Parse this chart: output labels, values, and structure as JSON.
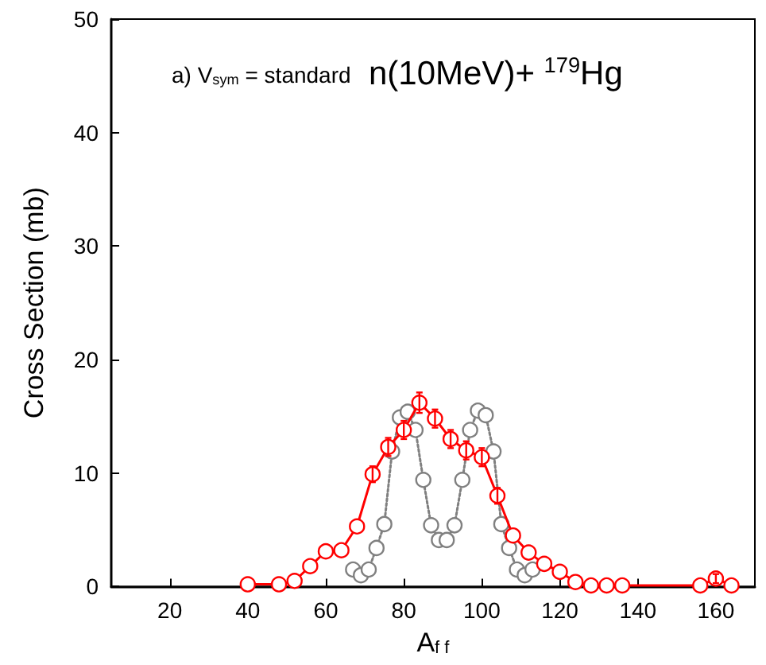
{
  "chart_data": {
    "type": "line",
    "xlabel": "A$_{f f}$",
    "ylabel": "Cross Section (mb)",
    "annotations": [
      "a) V$_{sym}$ = standard",
      "n(10MeV)+ $^{179}$Hg"
    ],
    "xlim": [
      5,
      170
    ],
    "xticks": [
      20,
      40,
      60,
      80,
      100,
      120,
      140,
      160
    ],
    "ylim": [
      0,
      50
    ],
    "yticks": [
      0,
      10,
      20,
      30,
      40,
      50
    ],
    "marker": "circle",
    "series": [
      {
        "color": "#808080",
        "line_style": "dotted",
        "x": [
          67,
          69,
          71,
          73,
          75,
          77,
          79,
          81,
          83,
          85,
          87,
          89,
          91,
          93,
          95,
          97,
          99,
          101,
          103,
          105,
          107,
          109,
          111,
          113
        ],
        "values": [
          1.5,
          1.0,
          1.5,
          3.4,
          5.5,
          11.9,
          14.9,
          15.4,
          13.8,
          9.4,
          5.4,
          4.1,
          4.1,
          5.4,
          9.4,
          13.8,
          15.5,
          15.1,
          11.9,
          5.5,
          3.4,
          1.5,
          1.0,
          1.5
        ]
      },
      {
        "color": "#ff0000",
        "line_style": "solid",
        "x": [
          40,
          48,
          52,
          56,
          60,
          64,
          68,
          72,
          76,
          80,
          84,
          88,
          92,
          96,
          100,
          104,
          108,
          112,
          116,
          120,
          124,
          128,
          132,
          136,
          156,
          160,
          164
        ],
        "values": [
          0.2,
          0.2,
          0.5,
          1.8,
          3.1,
          3.2,
          5.3,
          9.9,
          12.3,
          13.8,
          16.2,
          14.8,
          13.0,
          12.0,
          11.4,
          8.0,
          4.5,
          3.0,
          2.0,
          1.3,
          0.4,
          0.1,
          0.1,
          0.1,
          0.1,
          0.7,
          0.1
        ],
        "errors": [
          null,
          null,
          null,
          null,
          null,
          null,
          null,
          0.7,
          0.8,
          0.8,
          0.9,
          0.8,
          0.8,
          0.8,
          0.8,
          0.7,
          null,
          null,
          null,
          null,
          null,
          null,
          null,
          null,
          null,
          0.4,
          null
        ]
      }
    ]
  }
}
